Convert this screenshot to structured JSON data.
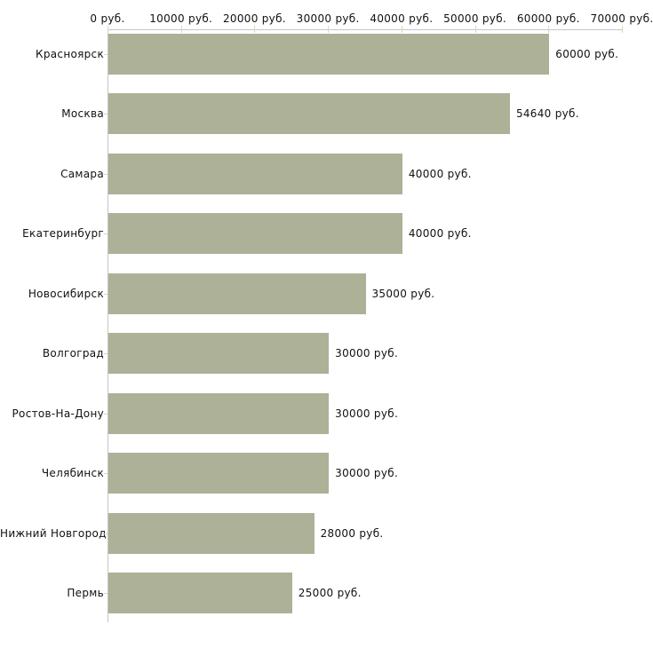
{
  "chart_data": {
    "type": "bar",
    "orientation": "horizontal",
    "title": "",
    "xlabel": "",
    "ylabel": "",
    "grid": false,
    "legend": "none",
    "categories": [
      "Красноярск",
      "Москва",
      "Самара",
      "Екатеринбург",
      "Новосибирск",
      "Волгоград",
      "Ростов-На-Дону",
      "Челябинск",
      "Нижний Новгород",
      "Пермь"
    ],
    "values": [
      60000,
      54640,
      40000,
      40000,
      35000,
      30000,
      30000,
      30000,
      28000,
      25000
    ],
    "value_labels": [
      "60000 руб.",
      "54640 руб.",
      "40000 руб.",
      "40000 руб.",
      "35000 руб.",
      "30000 руб.",
      "30000 руб.",
      "30000 руб.",
      "28000 руб.",
      "25000 руб."
    ],
    "x_axis": {
      "position": "top",
      "min": 0,
      "max": 70000,
      "tick_interval": 10000,
      "tick_labels": [
        "0 руб.",
        "10000 руб.",
        "20000 руб.",
        "30000 руб.",
        "40000 руб.",
        "50000 руб.",
        "60000 руб.",
        "70000 руб."
      ]
    },
    "colors": {
      "bar": "#acb198",
      "axis_line": "#c6c6c6",
      "tick_mark": "#d9d9b4",
      "text": "#111111",
      "background": "#ffffff"
    }
  }
}
